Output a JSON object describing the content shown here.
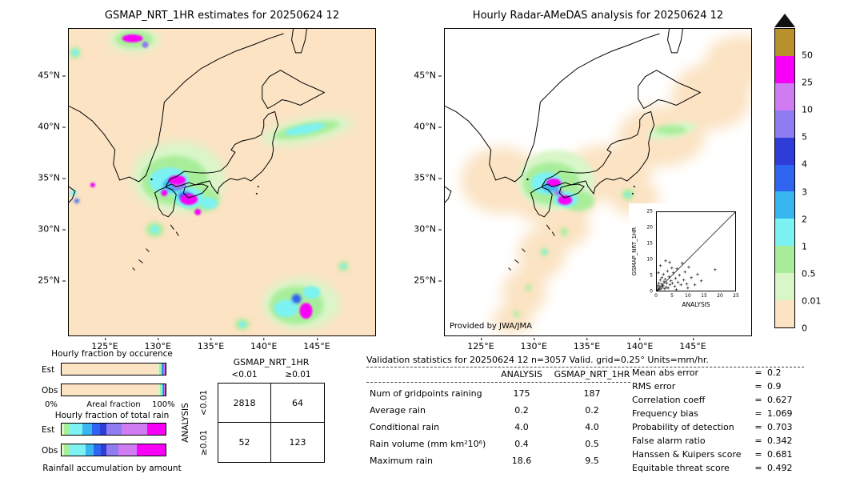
{
  "chart_data": [
    {
      "type": "map",
      "name": "gsmap_nrt_estimates_map",
      "title": "GSMAP_NRT_1HR estimates for 20250624 12",
      "lat_ticks": [
        "45°N",
        "40°N",
        "35°N",
        "30°N",
        "25°N"
      ],
      "lon_ticks": [
        "125°E",
        "130°E",
        "135°E",
        "140°E",
        "145°E"
      ],
      "units": "mm/hr"
    },
    {
      "type": "map",
      "name": "radar_amedas_analysis_map",
      "title": "Hourly Radar-AMeDAS analysis for 20250624 12",
      "lat_ticks": [
        "45°N",
        "40°N",
        "35°N",
        "30°N",
        "25°N"
      ],
      "lon_ticks": [
        "125°E",
        "130°E",
        "135°E",
        "140°E",
        "145°E"
      ],
      "credit": "Provided by JWA/JMA",
      "units": "mm/hr"
    },
    {
      "type": "colorbar",
      "name": "precipitation_colorbar",
      "units": "mm/hr",
      "levels": [
        "50",
        "25",
        "10",
        "5",
        "4",
        "3",
        "2",
        "1",
        "0.5",
        "0.01",
        "0"
      ],
      "colors": [
        "#b8902c",
        "#f800f8",
        "#cf7cf2",
        "#8f7cf0",
        "#2f3cd8",
        "#2e64f0",
        "#37b6f0",
        "#7df2f2",
        "#a8ee9a",
        "#d9f6c9",
        "#fbe3c3"
      ]
    },
    {
      "type": "bar",
      "name": "hourly_fraction_by_occurrence",
      "title": "Hourly fraction by occurence",
      "xlabel": "Areal fraction",
      "xticks": [
        "0%",
        "100%"
      ],
      "categories": [
        "Est",
        "Obs"
      ],
      "series": [
        {
          "name": "Est",
          "segments": [
            {
              "pct": 91.5,
              "color": "#fbe3c3"
            },
            {
              "pct": 2.2,
              "color": "#d9f6c9"
            },
            {
              "pct": 1.4,
              "color": "#a8ee9a"
            },
            {
              "pct": 1.3,
              "color": "#7df2f2"
            },
            {
              "pct": 0.9,
              "color": "#37b6f0"
            },
            {
              "pct": 0.7,
              "color": "#2e64f0"
            },
            {
              "pct": 0.7,
              "color": "#8f7cf0"
            },
            {
              "pct": 0.8,
              "color": "#cf7cf2"
            },
            {
              "pct": 0.5,
              "color": "#f800f8"
            }
          ]
        },
        {
          "name": "Obs",
          "segments": [
            {
              "pct": 92.5,
              "color": "#fbe3c3"
            },
            {
              "pct": 2.0,
              "color": "#d9f6c9"
            },
            {
              "pct": 1.2,
              "color": "#a8ee9a"
            },
            {
              "pct": 1.1,
              "color": "#7df2f2"
            },
            {
              "pct": 0.8,
              "color": "#37b6f0"
            },
            {
              "pct": 0.6,
              "color": "#2e64f0"
            },
            {
              "pct": 0.6,
              "color": "#8f7cf0"
            },
            {
              "pct": 0.7,
              "color": "#cf7cf2"
            },
            {
              "pct": 0.5,
              "color": "#f800f8"
            }
          ]
        }
      ]
    },
    {
      "type": "bar",
      "name": "hourly_fraction_of_total_rain",
      "title": "Hourly fraction of total rain",
      "caption": "Rainfall accumulation by amount",
      "categories": [
        "Est",
        "Obs"
      ],
      "series": [
        {
          "name": "Est",
          "segments": [
            {
              "pct": 2,
              "color": "#d9f6c9"
            },
            {
              "pct": 5,
              "color": "#a8ee9a"
            },
            {
              "pct": 13,
              "color": "#7df2f2"
            },
            {
              "pct": 9,
              "color": "#37b6f0"
            },
            {
              "pct": 8,
              "color": "#2e64f0"
            },
            {
              "pct": 6,
              "color": "#2f3cd8"
            },
            {
              "pct": 15,
              "color": "#8f7cf0"
            },
            {
              "pct": 24,
              "color": "#cf7cf2"
            },
            {
              "pct": 18,
              "color": "#f800f8"
            }
          ]
        },
        {
          "name": "Obs",
          "segments": [
            {
              "pct": 2,
              "color": "#d9f6c9"
            },
            {
              "pct": 6,
              "color": "#a8ee9a"
            },
            {
              "pct": 15,
              "color": "#7df2f2"
            },
            {
              "pct": 8,
              "color": "#37b6f0"
            },
            {
              "pct": 7,
              "color": "#2e64f0"
            },
            {
              "pct": 5,
              "color": "#2f3cd8"
            },
            {
              "pct": 12,
              "color": "#8f7cf0"
            },
            {
              "pct": 17,
              "color": "#cf7cf2"
            },
            {
              "pct": 28,
              "color": "#f800f8"
            }
          ]
        }
      ]
    },
    {
      "type": "table",
      "name": "contingency_table",
      "col_group": "GSMAP_NRT_1HR",
      "row_group": "ANALYSIS",
      "col_labels": [
        "<0.01",
        "≥0.01"
      ],
      "row_labels": [
        "<0.01",
        "≥0.01"
      ],
      "values": [
        [
          "2818",
          "64"
        ],
        [
          "52",
          "123"
        ]
      ]
    },
    {
      "type": "scatter",
      "name": "gsmap_vs_analysis_scatter",
      "xlabel": "ANALYSIS",
      "ylabel": "GSMAP_NRT_1HR",
      "xlim": [
        0,
        25
      ],
      "ylim": [
        0,
        25
      ],
      "xticks": [
        "0",
        "5",
        "10",
        "15",
        "20",
        "25"
      ],
      "yticks": [
        "0",
        "5",
        "10",
        "15",
        "20",
        "25"
      ],
      "diagonal": true,
      "points": [
        [
          0.2,
          0.1
        ],
        [
          0.4,
          0.7
        ],
        [
          0.3,
          1.6
        ],
        [
          0.6,
          2.4
        ],
        [
          0.8,
          0.3
        ],
        [
          1,
          1.2
        ],
        [
          1.1,
          3.2
        ],
        [
          1.3,
          0.6
        ],
        [
          1.5,
          2
        ],
        [
          1.6,
          4.1
        ],
        [
          1.8,
          0.9
        ],
        [
          2,
          1.5
        ],
        [
          2.1,
          5
        ],
        [
          2.3,
          2.8
        ],
        [
          2.5,
          0.4
        ],
        [
          2.7,
          3.6
        ],
        [
          3,
          1.1
        ],
        [
          3.2,
          2.3
        ],
        [
          3.4,
          6.2
        ],
        [
          3.6,
          0.7
        ],
        [
          3.9,
          4.4
        ],
        [
          4.2,
          1.8
        ],
        [
          4.5,
          3
        ],
        [
          4.8,
          7.1
        ],
        [
          5,
          2.2
        ],
        [
          5.3,
          5.6
        ],
        [
          5.7,
          1.3
        ],
        [
          6,
          3.8
        ],
        [
          6.4,
          6.8
        ],
        [
          6.8,
          2.6
        ],
        [
          7.2,
          4.9
        ],
        [
          7.7,
          1.7
        ],
        [
          8.1,
          8.8
        ],
        [
          8.6,
          3.4
        ],
        [
          9,
          5.9
        ],
        [
          9.6,
          2.1
        ],
        [
          10.2,
          7.4
        ],
        [
          11,
          4.2
        ],
        [
          12.1,
          1.9
        ],
        [
          13,
          5.2
        ],
        [
          14.2,
          3.1
        ],
        [
          18.6,
          6.6
        ],
        [
          0.5,
          5.5
        ],
        [
          1.2,
          7.8
        ],
        [
          2.8,
          9.5
        ],
        [
          4.1,
          9
        ],
        [
          6.2,
          0.2
        ],
        [
          9.9,
          0.8
        ]
      ]
    },
    {
      "type": "table",
      "name": "validation_statistics",
      "title": "Validation statistics for 20250624 12  n=3057 Valid. grid=0.25° Units=mm/hr.",
      "eq": "=",
      "columns": [
        "ANALYSIS",
        "GSMAP_NRT_1HR"
      ],
      "rows": [
        {
          "label": "Num of gridpoints raining",
          "values": [
            "175",
            "187"
          ]
        },
        {
          "label": "Average rain",
          "values": [
            "0.2",
            "0.2"
          ]
        },
        {
          "label": "Conditional rain",
          "values": [
            "4.0",
            "4.0"
          ]
        },
        {
          "label": "Rain volume (mm km²10⁶)",
          "values": [
            "0.4",
            "0.5"
          ]
        },
        {
          "label": "Maximum rain",
          "values": [
            "18.6",
            "9.5"
          ]
        }
      ],
      "scores": [
        {
          "label": "Mean abs error",
          "value": "0.2"
        },
        {
          "label": "RMS error",
          "value": "0.9"
        },
        {
          "label": "Correlation coeff",
          "value": "0.627"
        },
        {
          "label": "Frequency bias",
          "value": "1.069"
        },
        {
          "label": "Probability of detection",
          "value": "0.703"
        },
        {
          "label": "False alarm ratio",
          "value": "0.342"
        },
        {
          "label": "Hanssen & Kuipers score",
          "value": "0.681"
        },
        {
          "label": "Equitable threat score",
          "value": "0.492"
        }
      ]
    }
  ]
}
